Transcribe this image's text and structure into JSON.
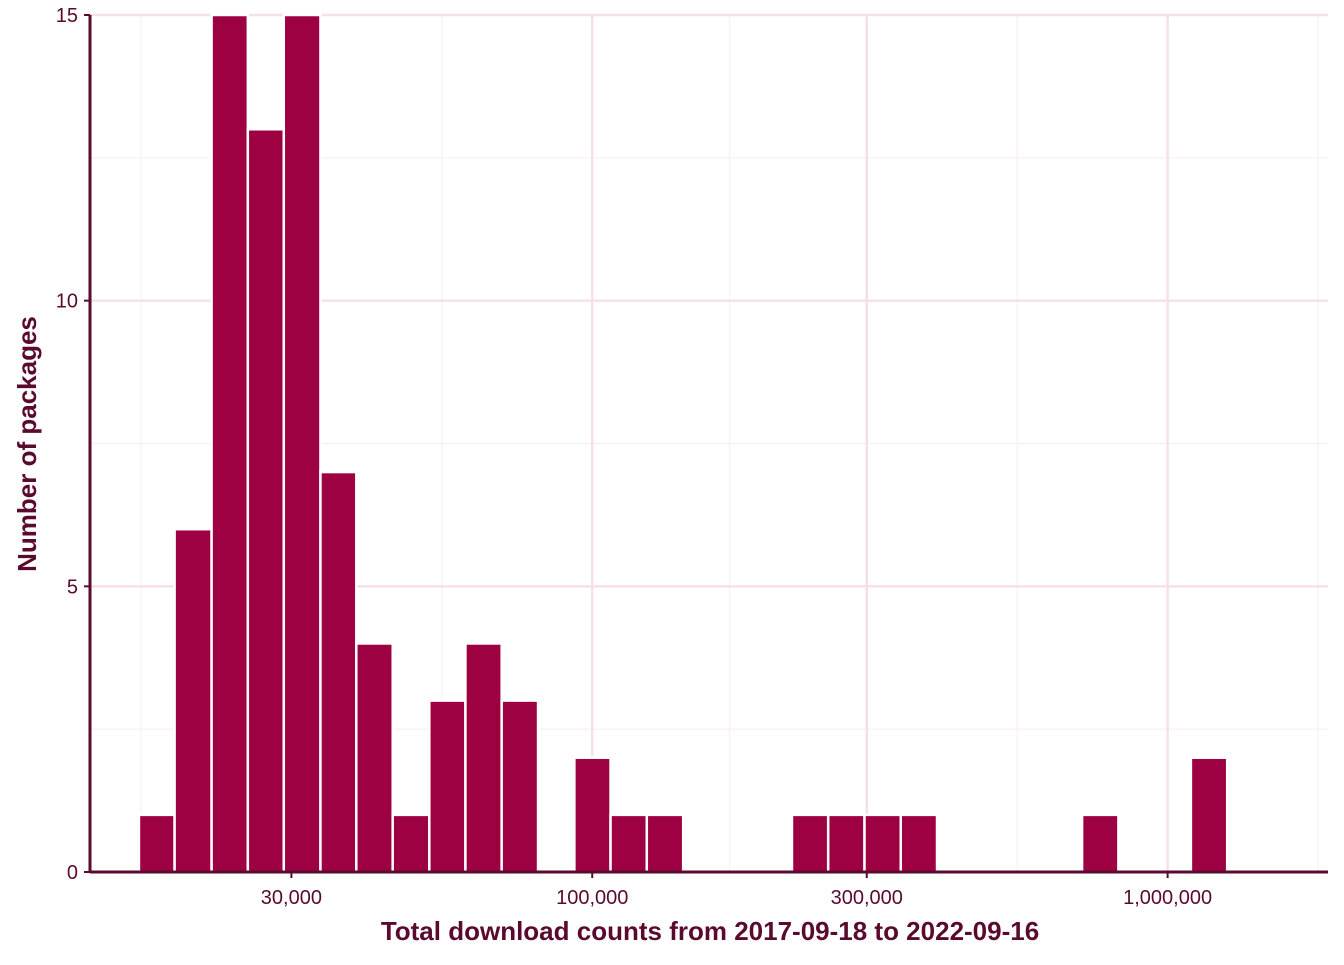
{
  "chart_data": {
    "type": "bar",
    "title": "",
    "xlabel": "Total download counts from 2017-09-18 to 2022-09-16",
    "ylabel": "Number of packages",
    "x_scale": "log10",
    "xlim": [
      13400,
      1900000
    ],
    "ylim": [
      0,
      15
    ],
    "grid": true,
    "x_ticks": [
      {
        "value": 30000,
        "label": "30,000"
      },
      {
        "value": 100000,
        "label": "100,000"
      },
      {
        "value": 300000,
        "label": "300,000"
      },
      {
        "value": 1000000,
        "label": "1,000,000"
      }
    ],
    "y_ticks": [
      {
        "value": 0,
        "label": "0"
      },
      {
        "value": 5,
        "label": "5"
      },
      {
        "value": 10,
        "label": "10"
      },
      {
        "value": 15,
        "label": "15"
      }
    ],
    "bins": [
      {
        "x_min": 16300,
        "x_max": 18800,
        "count": 1
      },
      {
        "x_min": 18800,
        "x_max": 21800,
        "count": 6
      },
      {
        "x_min": 21800,
        "x_max": 25200,
        "count": 15
      },
      {
        "x_min": 25200,
        "x_max": 29100,
        "count": 13
      },
      {
        "x_min": 29100,
        "x_max": 33700,
        "count": 15
      },
      {
        "x_min": 33700,
        "x_max": 38900,
        "count": 7
      },
      {
        "x_min": 38900,
        "x_max": 45000,
        "count": 4
      },
      {
        "x_min": 45000,
        "x_max": 52100,
        "count": 1
      },
      {
        "x_min": 52100,
        "x_max": 60200,
        "count": 3
      },
      {
        "x_min": 60200,
        "x_max": 69600,
        "count": 4
      },
      {
        "x_min": 69600,
        "x_max": 80500,
        "count": 3
      },
      {
        "x_min": 80500,
        "x_max": 93100,
        "count": 0
      },
      {
        "x_min": 93100,
        "x_max": 107600,
        "count": 2
      },
      {
        "x_min": 107600,
        "x_max": 124400,
        "count": 1
      },
      {
        "x_min": 124400,
        "x_max": 143900,
        "count": 1
      },
      {
        "x_min": 143900,
        "x_max": 166300,
        "count": 0
      },
      {
        "x_min": 166300,
        "x_max": 192300,
        "count": 0
      },
      {
        "x_min": 192300,
        "x_max": 222400,
        "count": 0
      },
      {
        "x_min": 222400,
        "x_max": 257100,
        "count": 1
      },
      {
        "x_min": 257100,
        "x_max": 297300,
        "count": 1
      },
      {
        "x_min": 297300,
        "x_max": 343700,
        "count": 1
      },
      {
        "x_min": 343700,
        "x_max": 397400,
        "count": 1
      },
      {
        "x_min": 397400,
        "x_max": 459500,
        "count": 0
      },
      {
        "x_min": 459500,
        "x_max": 531300,
        "count": 0
      },
      {
        "x_min": 531300,
        "x_max": 614300,
        "count": 0
      },
      {
        "x_min": 614300,
        "x_max": 710200,
        "count": 0
      },
      {
        "x_min": 710200,
        "x_max": 821200,
        "count": 1
      },
      {
        "x_min": 821200,
        "x_max": 949400,
        "count": 0
      },
      {
        "x_min": 949400,
        "x_max": 1097700,
        "count": 0
      },
      {
        "x_min": 1097700,
        "x_max": 1269200,
        "count": 2
      }
    ],
    "colors": {
      "bar": "#9e0142",
      "bar_edge": "#ffffff",
      "axis": "#5a0a2e",
      "grid_major": "#f6dfe6",
      "grid_minor": "#fbeef2"
    }
  }
}
